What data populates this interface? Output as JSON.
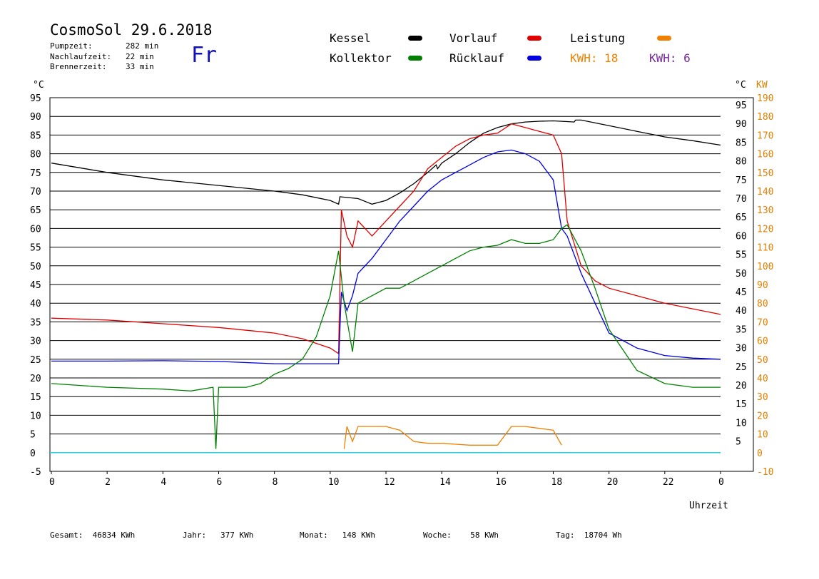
{
  "header": {
    "title": "CosmoSol 29.6.2018",
    "day": "Fr",
    "info": [
      {
        "label": "Pumpzeit:",
        "value": "282 min"
      },
      {
        "label": "Nachlaufzeit:",
        "value": "22 min"
      },
      {
        "label": "Brennerzeit:",
        "value": "33 min"
      }
    ]
  },
  "legend": {
    "items": [
      {
        "label": "Kessel",
        "color": "#000000"
      },
      {
        "label": "Vorlauf",
        "color": "#e00000"
      },
      {
        "label": "Leistung",
        "color": "#f08000"
      },
      {
        "label": "Kollektor",
        "color": "#008000"
      },
      {
        "label": "Rücklauf",
        "color": "#0000e0"
      }
    ],
    "kwh_orange": "KWH: 18",
    "kwh_purple": "KWH: 6"
  },
  "axes": {
    "left_unit": "°C",
    "right_unit_c": "°C",
    "right_unit_kw": "KW",
    "x_label": "Uhrzeit"
  },
  "footer": {
    "gesamt": "Gesamt:  46834 KWh",
    "jahr": "Jahr:   377 KWh",
    "monat": "Monat:   148 KWh",
    "woche": "Woche:    58 KWh",
    "tag": "Tag:  18704 Wh"
  },
  "chart_data": {
    "type": "line",
    "xlabel": "Uhrzeit",
    "xlim": [
      0,
      24
    ],
    "x_ticks": [
      "0",
      "2",
      "4",
      "6",
      "8",
      "10",
      "12",
      "14",
      "16",
      "18",
      "20",
      "22",
      "0"
    ],
    "ylim_left": [
      -5,
      95
    ],
    "y_ticks_left": [
      "95",
      "90",
      "85",
      "80",
      "75",
      "70",
      "65",
      "60",
      "55",
      "50",
      "45",
      "40",
      "35",
      "30",
      "25",
      "20",
      "15",
      "10",
      "5",
      "0",
      "-5"
    ],
    "y_ticks_right_c": [
      "95",
      "90",
      "85",
      "80",
      "75",
      "70",
      "65",
      "60",
      "55",
      "50",
      "45",
      "40",
      "35",
      "30",
      "25",
      "20",
      "15",
      "10",
      "5"
    ],
    "y_ticks_right_kw": [
      "190",
      "180",
      "170",
      "160",
      "150",
      "140",
      "130",
      "120",
      "110",
      "100",
      "90",
      "80",
      "70",
      "60",
      "50",
      "40",
      "30",
      "20",
      "10",
      "0",
      "-10"
    ],
    "grid": true,
    "series": [
      {
        "name": "Kessel",
        "color": "#000000",
        "x": [
          0,
          2,
          4,
          6,
          8,
          9,
          10,
          10.3,
          10.35,
          11,
          11.5,
          12,
          12.5,
          13,
          13.5,
          13.8,
          13.85,
          14,
          14.5,
          15,
          15.5,
          16,
          16.5,
          17,
          17.5,
          18,
          18.5,
          18.75,
          18.8,
          19,
          20,
          21,
          22,
          23,
          24
        ],
        "y": [
          77.5,
          75,
          73,
          71.5,
          70,
          69,
          67.5,
          66.5,
          68.5,
          68,
          66.5,
          67.5,
          69.5,
          72,
          75,
          77,
          76,
          77.5,
          80,
          83,
          85.5,
          87,
          88,
          88.5,
          88.7,
          88.8,
          88.6,
          88.5,
          89,
          89,
          87.5,
          86,
          84.5,
          83.5,
          82.3
        ]
      },
      {
        "name": "Vorlauf",
        "color": "#e00000",
        "x": [
          0,
          2,
          4,
          6,
          8,
          9,
          10,
          10.3,
          10.4,
          10.6,
          10.8,
          11,
          11.5,
          12,
          12.5,
          13,
          13.5,
          14,
          14.5,
          15,
          15.5,
          16,
          16.5,
          17,
          17.5,
          18,
          18.3,
          18.5,
          19,
          19.5,
          20,
          21,
          22,
          23,
          24
        ],
        "y": [
          36,
          35.5,
          34.5,
          33.5,
          32,
          30.5,
          28,
          26.5,
          65,
          58,
          55,
          62,
          58,
          62,
          66,
          70,
          76,
          79,
          82,
          84,
          85,
          85.5,
          88,
          87,
          86,
          85,
          80,
          62,
          50,
          46,
          44,
          42,
          40,
          38.5,
          37
        ]
      },
      {
        "name": "Rücklauf",
        "color": "#0000e0",
        "x": [
          0,
          2,
          4,
          6,
          8,
          9,
          10,
          10.3,
          10.4,
          10.6,
          10.8,
          11,
          11.5,
          12,
          12.5,
          13,
          13.5,
          14,
          14.5,
          15,
          15.5,
          16,
          16.5,
          17,
          17.5,
          18,
          18.3,
          18.5,
          19,
          19.5,
          20,
          21,
          22,
          23,
          24
        ],
        "y": [
          24.5,
          24.5,
          24.6,
          24.4,
          23.8,
          23.8,
          23.8,
          23.8,
          43,
          38,
          42,
          48,
          52,
          57,
          62,
          66,
          70,
          73,
          75,
          77,
          79,
          80.5,
          81,
          80,
          78,
          73,
          60,
          58,
          48,
          40,
          32,
          28,
          26,
          25.3,
          25
        ]
      },
      {
        "name": "Kollektor",
        "color": "#008000",
        "x": [
          0,
          2,
          4,
          5,
          5.8,
          5.9,
          6,
          7,
          7.5,
          8,
          8.5,
          9,
          9.5,
          10,
          10.2,
          10.3,
          10.5,
          10.8,
          11,
          11.5,
          12,
          12.5,
          13,
          13.5,
          14,
          14.5,
          15,
          15.5,
          16,
          16.5,
          17,
          17.5,
          18,
          18.3,
          18.5,
          19,
          19.5,
          20,
          21,
          22,
          23,
          24
        ],
        "y": [
          18.5,
          17.5,
          17,
          16.5,
          17.5,
          1,
          17.5,
          17.5,
          18.5,
          21,
          22.5,
          25,
          31,
          42,
          50,
          54,
          40,
          27,
          40,
          42,
          44,
          44,
          46,
          48,
          50,
          52,
          54,
          55,
          55.5,
          57,
          56,
          56,
          57,
          60,
          61,
          54,
          44,
          33,
          22,
          18.5,
          17.5,
          17.5
        ]
      }
    ],
    "power_series": [
      {
        "name": "Leistung",
        "color": "#f08000",
        "x": [
          10.5,
          10.6,
          10.8,
          11,
          11.5,
          12,
          12.5,
          13,
          13.5,
          14,
          15,
          16,
          16.5,
          17,
          17.5,
          18,
          18.3
        ],
        "y_kw": [
          2,
          14,
          6,
          14,
          14,
          14,
          12,
          6,
          5,
          5,
          4,
          4,
          14,
          14,
          13,
          12,
          4
        ]
      }
    ]
  }
}
